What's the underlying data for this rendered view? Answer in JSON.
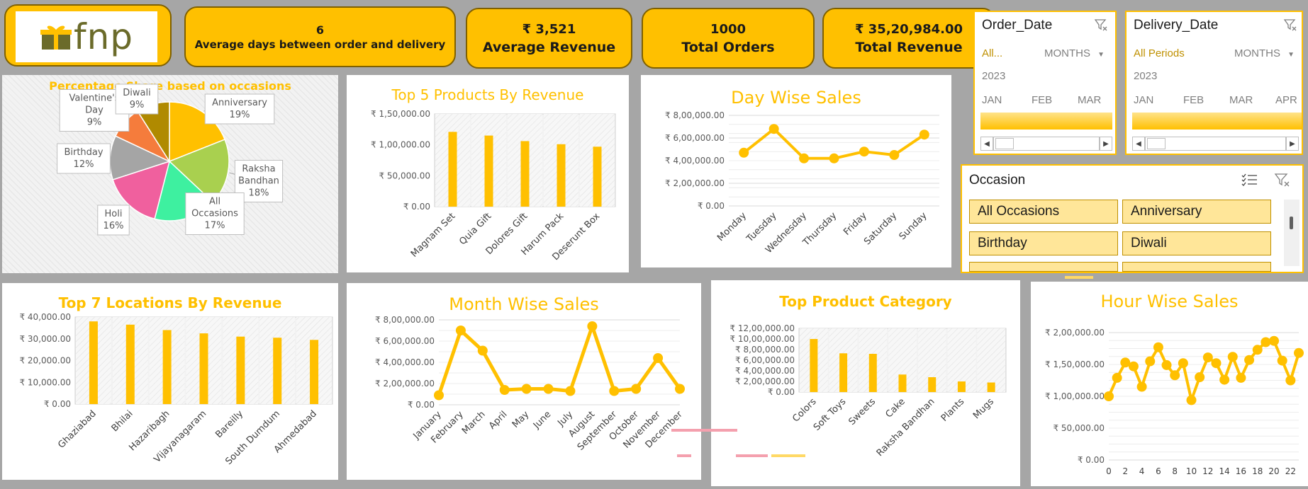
{
  "brand": {
    "logo_text": "fnp"
  },
  "kpis": [
    {
      "value": "6",
      "label": "Average days between order and delivery"
    },
    {
      "value": "₹ 3,521",
      "label": "Average Revenue"
    },
    {
      "value": "1000",
      "label": "Total Orders"
    },
    {
      "value": "₹ 35,20,984.00",
      "label": "Total Revenue"
    }
  ],
  "slicers": {
    "order_date": {
      "title": "Order_Date",
      "selection": "All...",
      "level": "MONTHS",
      "year": "2023",
      "months": [
        "JAN",
        "FEB",
        "MAR"
      ]
    },
    "delivery_date": {
      "title": "Delivery_Date",
      "selection": "All Periods",
      "level": "MONTHS",
      "year": "2023",
      "months": [
        "JAN",
        "FEB",
        "MAR",
        "APR"
      ]
    },
    "occasion": {
      "title": "Occasion",
      "items": [
        "All Occasions",
        "Anniversary",
        "Birthday",
        "Diwali"
      ]
    }
  },
  "colors": {
    "accent": "#ffc000",
    "pink": "#f4859a",
    "pastel": "#ffd966"
  },
  "chart_data": [
    {
      "id": "occasions",
      "type": "pie",
      "title": "Percentage Share based on occasions",
      "slices": [
        {
          "label": "Anniversary",
          "value": 19,
          "display": "19%",
          "color": "#ffc000"
        },
        {
          "label": "Raksha Bandhan",
          "value": 18,
          "display": "18%",
          "color": "#a9d04f"
        },
        {
          "label": "All Occasions",
          "value": 17,
          "display": "17%",
          "color": "#3ef0a0"
        },
        {
          "label": "Holi",
          "value": 16,
          "display": "16%",
          "color": "#f0609e"
        },
        {
          "label": "Birthday",
          "value": 12,
          "display": "12%",
          "color": "#a5a5a5"
        },
        {
          "label": "Valentine's Day",
          "value": 9,
          "display": "9%",
          "color": "#f57c3c"
        },
        {
          "label": "Diwali",
          "value": 9,
          "display": "9%",
          "color": "#b08a00"
        }
      ]
    },
    {
      "id": "top5products",
      "type": "bar",
      "title": "Top 5 Products By Revenue",
      "categories": [
        "Magnam Set",
        "Quia Gift",
        "Dolores Gift",
        "Harum Pack",
        "Deserunt Box"
      ],
      "values": [
        121000,
        115000,
        106000,
        101000,
        97000
      ],
      "ylim": [
        0,
        150000
      ],
      "yticks": [
        {
          "v": 0,
          "label": "₹ 0.00"
        },
        {
          "v": 50000,
          "label": "₹ 50,000.00"
        },
        {
          "v": 100000,
          "label": "₹ 1,00,000.00"
        },
        {
          "v": 150000,
          "label": "₹ 1,50,000.00"
        }
      ]
    },
    {
      "id": "daywise",
      "type": "line",
      "title": "Day Wise Sales",
      "categories": [
        "Monday",
        "Tuesday",
        "Wednesday",
        "Thursday",
        "Friday",
        "Saturday",
        "Sunday"
      ],
      "values": [
        470000,
        680000,
        420000,
        420000,
        480000,
        450000,
        630000
      ],
      "ylim": [
        0,
        800000
      ],
      "yticks": [
        {
          "v": 0,
          "label": "₹ 0.00"
        },
        {
          "v": 200000,
          "label": "₹ 2,00,000.00"
        },
        {
          "v": 400000,
          "label": "₹ 4,00,000.00"
        },
        {
          "v": 600000,
          "label": "₹ 6,00,000.00"
        },
        {
          "v": 800000,
          "label": "₹ 8,00,000.00"
        }
      ]
    },
    {
      "id": "top7locations",
      "type": "bar",
      "title": "Top 7 Locations By Revenue",
      "categories": [
        "Ghaziabad",
        "Bhilai",
        "Hazaribagh",
        "Vijayanagaram",
        "Bareilly",
        "South Dumdum",
        "Ahmedabad"
      ],
      "values": [
        38000,
        36500,
        34000,
        32500,
        31000,
        30500,
        29500
      ],
      "ylim": [
        0,
        40000
      ],
      "yticks": [
        {
          "v": 0,
          "label": "₹ 0.00"
        },
        {
          "v": 10000,
          "label": "₹ 10,000.00"
        },
        {
          "v": 20000,
          "label": "₹ 20,000.00"
        },
        {
          "v": 30000,
          "label": "₹ 30,000.00"
        },
        {
          "v": 40000,
          "label": "₹ 40,000.00"
        }
      ]
    },
    {
      "id": "monthwise",
      "type": "line",
      "title": "Month Wise Sales",
      "categories": [
        "January",
        "February",
        "March",
        "April",
        "May",
        "June",
        "July",
        "August",
        "September",
        "October",
        "November",
        "December"
      ],
      "values": [
        90000,
        700000,
        510000,
        140000,
        150000,
        150000,
        130000,
        740000,
        130000,
        150000,
        440000,
        150000
      ],
      "ylim": [
        0,
        800000
      ],
      "yticks": [
        {
          "v": 0,
          "label": "₹ 0.00"
        },
        {
          "v": 200000,
          "label": "₹ 2,00,000.00"
        },
        {
          "v": 400000,
          "label": "₹ 4,00,000.00"
        },
        {
          "v": 600000,
          "label": "₹ 6,00,000.00"
        },
        {
          "v": 800000,
          "label": "₹ 8,00,000.00"
        }
      ]
    },
    {
      "id": "topcategory",
      "type": "bar",
      "title": "Top Product Category",
      "categories": [
        "Colors",
        "Soft Toys",
        "Sweets",
        "Cake",
        "Raksha Bandhan",
        "Plants",
        "Mugs"
      ],
      "values": [
        1000000,
        730000,
        720000,
        330000,
        280000,
        200000,
        180000
      ],
      "ylim": [
        0,
        1200000
      ],
      "yticks": [
        {
          "v": 0,
          "label": "₹ 0.00"
        },
        {
          "v": 200000,
          "label": "₹ 2,00,000.00"
        },
        {
          "v": 400000,
          "label": "₹ 4,00,000.00"
        },
        {
          "v": 600000,
          "label": "₹ 6,00,000.00"
        },
        {
          "v": 800000,
          "label": "₹ 8,00,000.00"
        },
        {
          "v": 1000000,
          "label": "₹ 10,00,000.00"
        },
        {
          "v": 1200000,
          "label": "₹ 12,00,000.00"
        }
      ]
    },
    {
      "id": "hourwise",
      "type": "line",
      "title": "Hour Wise Sales",
      "x": [
        0,
        1,
        2,
        3,
        4,
        5,
        6,
        7,
        8,
        9,
        10,
        11,
        12,
        13,
        14,
        15,
        16,
        17,
        18,
        19,
        20,
        21,
        22,
        23
      ],
      "xticks": [
        "0",
        "2",
        "4",
        "6",
        "8",
        "10",
        "12",
        "14",
        "16",
        "18",
        "20",
        "22"
      ],
      "values": [
        100000,
        129000,
        153000,
        147000,
        115000,
        155000,
        177000,
        149000,
        133000,
        152000,
        94000,
        130000,
        161000,
        152000,
        126000,
        162000,
        129000,
        157000,
        173000,
        185000,
        187000,
        156000,
        125000,
        168000
      ],
      "ylim": [
        0,
        200000
      ],
      "yticks": [
        {
          "v": 0,
          "label": "₹ 0.00"
        },
        {
          "v": 50000,
          "label": "₹ 50,000.00"
        },
        {
          "v": 100000,
          "label": "₹ 1,00,000.00"
        },
        {
          "v": 150000,
          "label": "₹ 1,50,000.00"
        },
        {
          "v": 200000,
          "label": "₹ 2,00,000.00"
        }
      ]
    }
  ]
}
